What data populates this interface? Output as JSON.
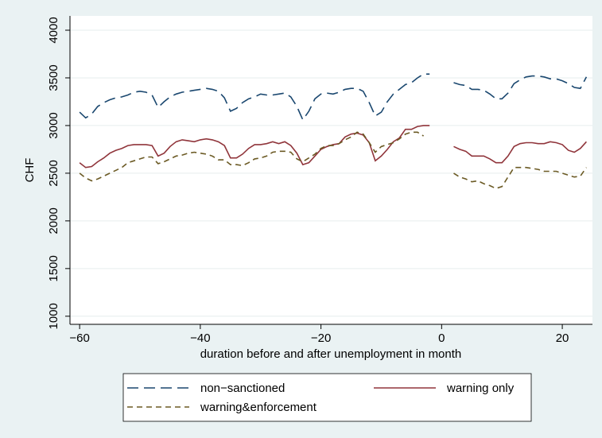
{
  "chart_data": {
    "type": "line",
    "y_label": "CHF",
    "x_label": "duration before and after unemployment in month",
    "x": [
      -60,
      -59,
      -58,
      -57,
      -56,
      -55,
      -54,
      -53,
      -52,
      -51,
      -50,
      -49,
      -48,
      -47,
      -46,
      -45,
      -44,
      -43,
      -42,
      -41,
      -40,
      -39,
      -38,
      -37,
      -36,
      -35,
      -34,
      -33,
      -32,
      -31,
      -30,
      -29,
      -28,
      -27,
      -26,
      -25,
      -24,
      -23,
      -22,
      -21,
      -20,
      -19,
      -18,
      -17,
      -16,
      -15,
      -14,
      -13,
      -12,
      -11,
      -10,
      -9,
      -8,
      -7,
      -6,
      -5,
      -4,
      -3,
      -2,
      -1,
      0,
      1,
      2,
      3,
      4,
      5,
      6,
      7,
      8,
      9,
      10,
      11,
      12,
      13,
      14,
      15,
      16,
      17,
      18,
      19,
      20,
      21,
      22,
      23,
      24
    ],
    "series": [
      {
        "name": "non−sanctioned",
        "color": "#1a476f",
        "values": [
          3140,
          3080,
          3120,
          3200,
          3240,
          3270,
          3290,
          3300,
          3320,
          3350,
          3360,
          3350,
          3320,
          3190,
          3250,
          3300,
          3330,
          3350,
          3360,
          3370,
          3380,
          3390,
          3380,
          3360,
          3290,
          3150,
          3180,
          3240,
          3280,
          3300,
          3330,
          3320,
          3320,
          3330,
          3340,
          3300,
          3200,
          3060,
          3150,
          3280,
          3330,
          3340,
          3330,
          3350,
          3380,
          3390,
          3390,
          3360,
          3240,
          3100,
          3140,
          3250,
          3330,
          3380,
          3430,
          3450,
          3500,
          3540,
          3540,
          null,
          null,
          null,
          3450,
          3430,
          3420,
          3380,
          3380,
          3370,
          3330,
          3280,
          3280,
          3340,
          3440,
          3480,
          3510,
          3520,
          3520,
          3510,
          3490,
          3490,
          3470,
          3440,
          3400,
          3390,
          3510
        ]
      },
      {
        "name": "warning only",
        "color": "#90353b",
        "values": [
          2610,
          2560,
          2570,
          2620,
          2660,
          2710,
          2740,
          2760,
          2790,
          2800,
          2800,
          2800,
          2790,
          2680,
          2710,
          2780,
          2830,
          2850,
          2840,
          2830,
          2850,
          2860,
          2850,
          2830,
          2790,
          2660,
          2660,
          2700,
          2760,
          2800,
          2800,
          2810,
          2830,
          2810,
          2830,
          2790,
          2710,
          2590,
          2610,
          2680,
          2750,
          2780,
          2800,
          2810,
          2880,
          2910,
          2920,
          2900,
          2820,
          2630,
          2680,
          2750,
          2830,
          2870,
          2960,
          2960,
          2990,
          3000,
          3000,
          null,
          null,
          null,
          2780,
          2750,
          2730,
          2680,
          2680,
          2680,
          2650,
          2610,
          2610,
          2680,
          2780,
          2810,
          2820,
          2820,
          2810,
          2810,
          2830,
          2820,
          2800,
          2740,
          2720,
          2760,
          2830
        ]
      },
      {
        "name": "warning&enforcement",
        "color": "#6b5a24",
        "values": [
          2500,
          2450,
          2420,
          2440,
          2470,
          2500,
          2530,
          2560,
          2610,
          2630,
          2650,
          2670,
          2670,
          2600,
          2620,
          2650,
          2680,
          2690,
          2710,
          2720,
          2710,
          2700,
          2680,
          2640,
          2640,
          2590,
          2590,
          2580,
          2610,
          2650,
          2660,
          2680,
          2720,
          2730,
          2730,
          2720,
          2650,
          2620,
          2660,
          2700,
          2760,
          2790,
          2790,
          2810,
          2850,
          2880,
          2930,
          2910,
          2820,
          2720,
          2780,
          2800,
          2820,
          2860,
          2910,
          2930,
          2930,
          2890,
          null,
          null,
          null,
          null,
          2500,
          2460,
          2440,
          2410,
          2420,
          2390,
          2370,
          2340,
          2360,
          2460,
          2560,
          2560,
          2560,
          2550,
          2540,
          2520,
          2520,
          2520,
          2500,
          2480,
          2460,
          2470,
          2560
        ]
      }
    ],
    "xlim": [
      -61.6,
      25
    ],
    "ylim": [
      915,
      4150
    ],
    "xticks": [
      {
        "value": -60,
        "label": "−60"
      },
      {
        "value": -40,
        "label": "−40"
      },
      {
        "value": -20,
        "label": "−20"
      },
      0,
      20
    ],
    "yticks": [
      1000,
      1500,
      2000,
      2500,
      3000,
      3500,
      4000
    ],
    "grid": true
  }
}
